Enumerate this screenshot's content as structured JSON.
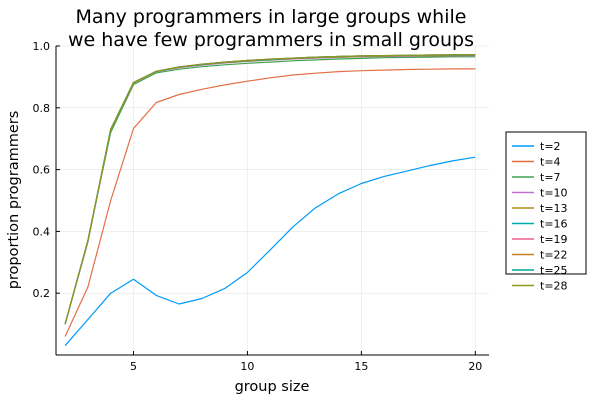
{
  "chart_data": {
    "type": "line",
    "title_lines": [
      "Many programmers in large groups while",
      "we have few programmers in small groups"
    ],
    "xlabel": "group size",
    "ylabel": "proportion programmers",
    "xlim": [
      1.6,
      20.6
    ],
    "ylim": [
      0.0,
      1.0
    ],
    "xticks": [
      5,
      10,
      15,
      20
    ],
    "yticks": [
      0.2,
      0.4,
      0.6,
      0.8,
      1.0
    ],
    "xtick_labels": [
      "5",
      "10",
      "15",
      "20"
    ],
    "ytick_labels": [
      "0.2",
      "0.4",
      "0.6",
      "0.8",
      "1.0"
    ],
    "grid": true,
    "legend_position": "right",
    "x": [
      2,
      3,
      4,
      5,
      6,
      7,
      8,
      9,
      10,
      11,
      12,
      13,
      14,
      15,
      16,
      17,
      18,
      19,
      20
    ],
    "series": [
      {
        "name": "t=2",
        "color": "#009AF9",
        "values": [
          0.03,
          0.115,
          0.2,
          0.245,
          0.193,
          0.165,
          0.183,
          0.215,
          0.267,
          0.34,
          0.415,
          0.477,
          0.522,
          0.555,
          0.578,
          0.595,
          0.613,
          0.628,
          0.64
        ]
      },
      {
        "name": "t=4",
        "color": "#E26F46",
        "values": [
          0.06,
          0.22,
          0.5,
          0.733,
          0.817,
          0.843,
          0.86,
          0.874,
          0.886,
          0.897,
          0.906,
          0.912,
          0.917,
          0.92,
          0.922,
          0.924,
          0.925,
          0.926,
          0.926
        ]
      },
      {
        "name": "t=7",
        "color": "#3EA44E",
        "values": [
          0.1,
          0.37,
          0.72,
          0.875,
          0.913,
          0.925,
          0.933,
          0.939,
          0.944,
          0.948,
          0.952,
          0.955,
          0.958,
          0.96,
          0.962,
          0.963,
          0.964,
          0.965,
          0.965
        ]
      },
      {
        "name": "t=10",
        "color": "#C271D2",
        "values": [
          0.1,
          0.365,
          0.73,
          0.88,
          0.917,
          0.93,
          0.938,
          0.945,
          0.95,
          0.954,
          0.958,
          0.961,
          0.963,
          0.965,
          0.966,
          0.967,
          0.968,
          0.968,
          0.969
        ]
      },
      {
        "name": "t=13",
        "color": "#AC8D18",
        "values": [
          0.1,
          0.37,
          0.73,
          0.88,
          0.918,
          0.931,
          0.94,
          0.946,
          0.951,
          0.955,
          0.959,
          0.962,
          0.964,
          0.966,
          0.967,
          0.968,
          0.969,
          0.969,
          0.97
        ]
      },
      {
        "name": "t=16",
        "color": "#00A9AD",
        "values": [
          0.1,
          0.37,
          0.73,
          0.882,
          0.918,
          0.932,
          0.94,
          0.947,
          0.952,
          0.956,
          0.96,
          0.963,
          0.965,
          0.967,
          0.968,
          0.969,
          0.97,
          0.97,
          0.971
        ]
      },
      {
        "name": "t=19",
        "color": "#ED5E93",
        "values": [
          0.1,
          0.37,
          0.73,
          0.882,
          0.918,
          0.932,
          0.941,
          0.947,
          0.953,
          0.957,
          0.96,
          0.963,
          0.966,
          0.967,
          0.968,
          0.969,
          0.97,
          0.971,
          0.971
        ]
      },
      {
        "name": "t=22",
        "color": "#C68225",
        "values": [
          0.1,
          0.37,
          0.73,
          0.882,
          0.918,
          0.932,
          0.941,
          0.948,
          0.953,
          0.957,
          0.961,
          0.964,
          0.966,
          0.968,
          0.969,
          0.97,
          0.971,
          0.971,
          0.972
        ]
      },
      {
        "name": "t=25",
        "color": "#00A98D",
        "values": [
          0.1,
          0.37,
          0.73,
          0.882,
          0.918,
          0.932,
          0.941,
          0.948,
          0.953,
          0.957,
          0.961,
          0.964,
          0.966,
          0.968,
          0.969,
          0.97,
          0.971,
          0.972,
          0.972
        ]
      },
      {
        "name": "t=28",
        "color": "#8E971E",
        "values": [
          0.1,
          0.37,
          0.73,
          0.882,
          0.918,
          0.932,
          0.941,
          0.948,
          0.953,
          0.958,
          0.961,
          0.964,
          0.966,
          0.968,
          0.969,
          0.97,
          0.971,
          0.972,
          0.972
        ]
      }
    ]
  }
}
